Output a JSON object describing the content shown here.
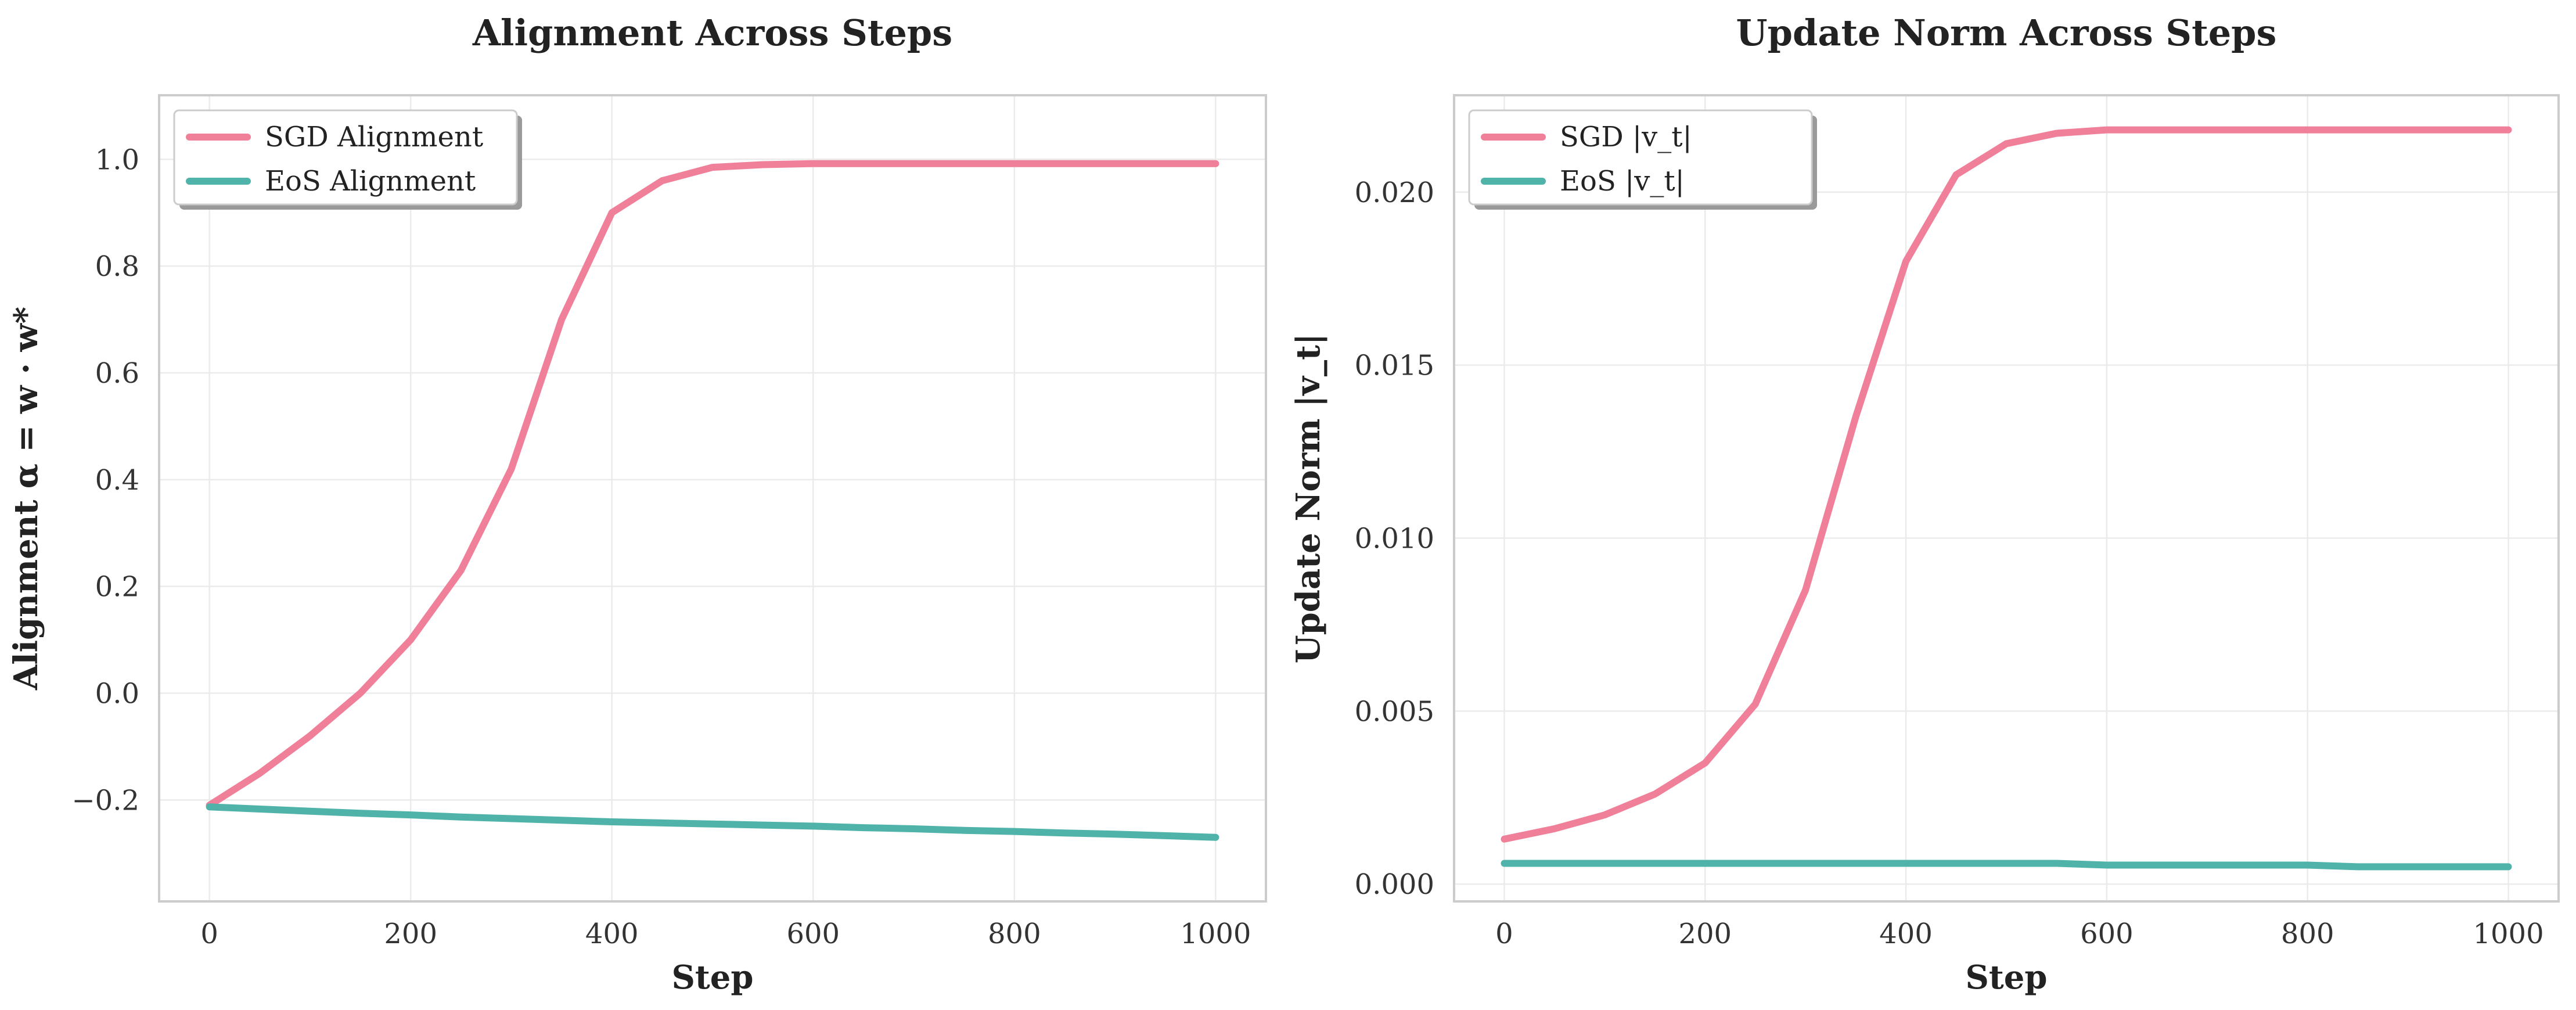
{
  "chart_data": [
    {
      "type": "line",
      "title": "Alignment Across Steps",
      "xlabel": "Step",
      "ylabel": "Alignment α = w · w*",
      "xlim": [
        -50,
        1050
      ],
      "ylim": [
        -0.39,
        1.12
      ],
      "xticks": [
        "0",
        "200",
        "400",
        "600",
        "800",
        "1000"
      ],
      "yticks": [
        "−0.2",
        "0.0",
        "0.2",
        "0.4",
        "0.6",
        "0.8",
        "1.0"
      ],
      "grid": true,
      "legend_position": "upper-left",
      "x": [
        0,
        50,
        100,
        150,
        200,
        250,
        300,
        350,
        400,
        450,
        500,
        550,
        600,
        650,
        700,
        750,
        800,
        850,
        900,
        950,
        1000
      ],
      "series": [
        {
          "name": "SGD Alignment",
          "color": "#f0809a",
          "values": [
            -0.21,
            -0.15,
            -0.08,
            0.0,
            0.1,
            0.23,
            0.42,
            0.7,
            0.9,
            0.96,
            0.985,
            0.99,
            0.992,
            0.992,
            0.992,
            0.992,
            0.992,
            0.992,
            0.992,
            0.992,
            0.992
          ]
        },
        {
          "name": "EoS Alignment",
          "color": "#4fb3a9",
          "values": [
            -0.213,
            -0.217,
            -0.221,
            -0.225,
            -0.228,
            -0.232,
            -0.235,
            -0.238,
            -0.241,
            -0.243,
            -0.245,
            -0.247,
            -0.249,
            -0.252,
            -0.254,
            -0.257,
            -0.259,
            -0.262,
            -0.264,
            -0.267,
            -0.27
          ]
        }
      ]
    },
    {
      "type": "line",
      "title": "Update Norm Across Steps",
      "xlabel": "Step",
      "ylabel": "Update Norm |v_t|",
      "xlim": [
        -50,
        1050
      ],
      "ylim": [
        -0.0005,
        0.0228
      ],
      "xticks": [
        "0",
        "200",
        "400",
        "600",
        "800",
        "1000"
      ],
      "yticks": [
        "0.000",
        "0.005",
        "0.010",
        "0.015",
        "0.020"
      ],
      "grid": true,
      "legend_position": "upper-left",
      "x": [
        0,
        50,
        100,
        150,
        200,
        250,
        300,
        350,
        400,
        450,
        500,
        550,
        600,
        650,
        700,
        750,
        800,
        850,
        900,
        950,
        1000
      ],
      "series": [
        {
          "name": "SGD |v_t|",
          "color": "#f0809a",
          "values": [
            0.0013,
            0.0016,
            0.002,
            0.0026,
            0.0035,
            0.0052,
            0.0085,
            0.0135,
            0.018,
            0.0205,
            0.0214,
            0.0217,
            0.0218,
            0.0218,
            0.0218,
            0.0218,
            0.0218,
            0.0218,
            0.0218,
            0.0218,
            0.0218
          ]
        },
        {
          "name": "EoS |v_t|",
          "color": "#4fb3a9",
          "values": [
            0.0006,
            0.0006,
            0.0006,
            0.0006,
            0.0006,
            0.0006,
            0.0006,
            0.0006,
            0.0006,
            0.0006,
            0.0006,
            0.0006,
            0.00055,
            0.00055,
            0.00055,
            0.00055,
            0.00055,
            0.0005,
            0.0005,
            0.0005,
            0.0005
          ]
        }
      ]
    }
  ]
}
